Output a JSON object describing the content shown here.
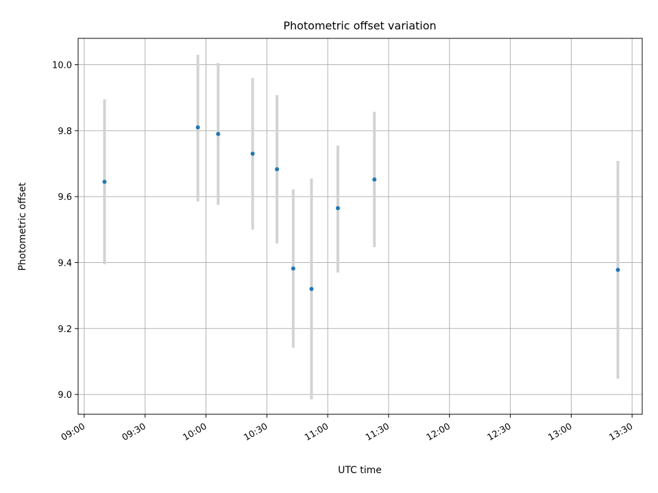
{
  "chart_data": {
    "type": "scatter",
    "title": "Photometric offset variation",
    "xlabel": "UTC time",
    "ylabel": "Photometric offset",
    "x_axis_kind": "time",
    "xlim": [
      "08:57",
      "13:35"
    ],
    "ylim": [
      8.94,
      10.08
    ],
    "grid": true,
    "xticks": [
      "09:00",
      "09:30",
      "10:00",
      "10:30",
      "11:00",
      "11:30",
      "12:00",
      "12:30",
      "13:00",
      "13:30"
    ],
    "yticks": [
      "9.0",
      "9.2",
      "9.4",
      "9.6",
      "9.8",
      "10.0"
    ],
    "marker_color": "#1f77b4",
    "errorbar_color": "#d3d3d3",
    "points": [
      {
        "time": "09:10",
        "value": 9.645,
        "low": 9.395,
        "high": 9.895
      },
      {
        "time": "09:56",
        "value": 9.81,
        "low": 9.585,
        "high": 10.03
      },
      {
        "time": "10:06",
        "value": 9.79,
        "low": 9.575,
        "high": 10.005
      },
      {
        "time": "10:23",
        "value": 9.73,
        "low": 9.5,
        "high": 9.96
      },
      {
        "time": "10:35",
        "value": 9.683,
        "low": 9.458,
        "high": 9.908
      },
      {
        "time": "10:43",
        "value": 9.382,
        "low": 9.142,
        "high": 9.622
      },
      {
        "time": "10:52",
        "value": 9.32,
        "low": 8.985,
        "high": 9.655
      },
      {
        "time": "11:05",
        "value": 9.565,
        "low": 9.37,
        "high": 9.755
      },
      {
        "time": "11:23",
        "value": 9.652,
        "low": 9.447,
        "high": 9.857
      },
      {
        "time": "13:23",
        "value": 9.378,
        "low": 9.048,
        "high": 9.708
      }
    ]
  }
}
